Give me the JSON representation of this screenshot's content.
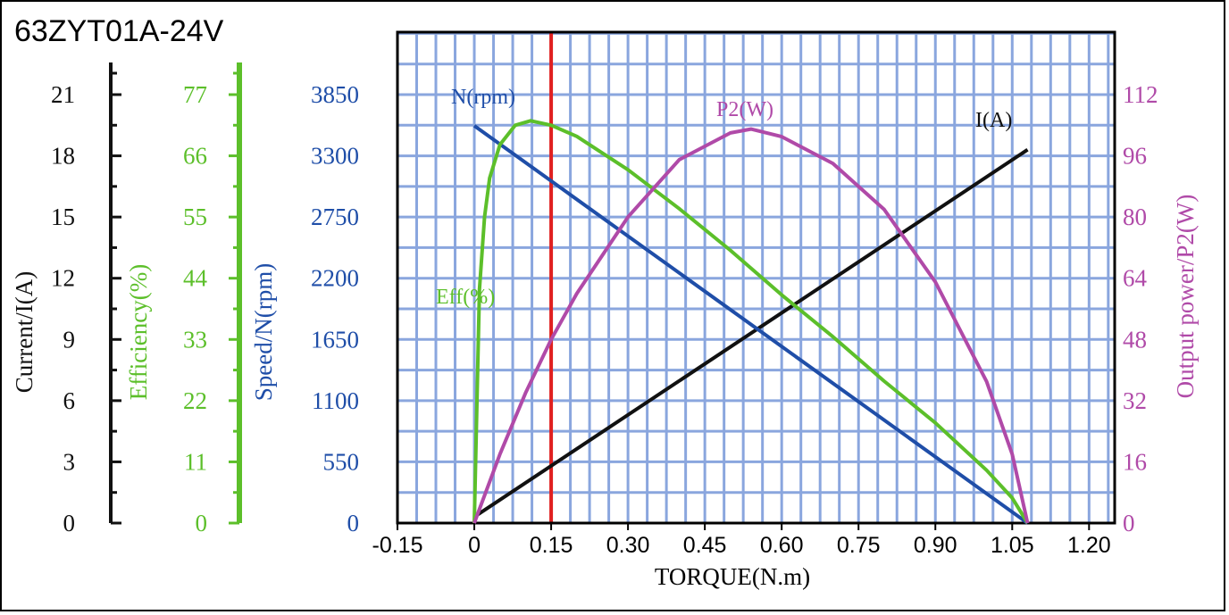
{
  "chart_data": {
    "type": "line",
    "title": "63ZYT01A-24V",
    "xlabel": "TORQUE(N.m)",
    "x_ticks": [
      "-0.15",
      "0",
      "0.15",
      "0.30",
      "0.45",
      "0.60",
      "0.75",
      "0.90",
      "1.05",
      "1.20"
    ],
    "xlim": [
      -0.15,
      1.25
    ],
    "grid": true,
    "colors": {
      "current": "#111111",
      "efficiency": "#5cbf2a",
      "speed": "#1f4ea8",
      "power": "#b04aa8",
      "grid": "#8aa6de",
      "marker": "#e02020"
    },
    "marker_line_x": 0.15,
    "axes": [
      {
        "id": "current",
        "label": "Current/I(A)",
        "ticks": [
          "0",
          "3",
          "6",
          "9",
          "12",
          "15",
          "18",
          "21"
        ],
        "range": [
          0,
          21
        ]
      },
      {
        "id": "efficiency",
        "label": "Efficiency(%)",
        "ticks": [
          "0",
          "11",
          "22",
          "33",
          "44",
          "55",
          "66",
          "77"
        ],
        "range": [
          0,
          77
        ]
      },
      {
        "id": "speed",
        "label": "Speed/N(rpm)",
        "ticks": [
          "0",
          "550",
          "1100",
          "1650",
          "2200",
          "2750",
          "3300",
          "3850"
        ],
        "range": [
          0,
          3850
        ]
      },
      {
        "id": "power",
        "label": "Output power/P2(W)",
        "ticks": [
          "0",
          "16",
          "32",
          "48",
          "64",
          "80",
          "96",
          "112"
        ],
        "range": [
          0,
          112
        ]
      }
    ],
    "series": [
      {
        "name": "I(A)",
        "axis": "current",
        "x": [
          0,
          1.08
        ],
        "y": [
          0.3,
          18.3
        ]
      },
      {
        "name": "N(rpm)",
        "axis": "speed",
        "x": [
          0,
          1.08
        ],
        "y": [
          3570,
          0
        ]
      },
      {
        "name": "Eff(%)",
        "axis": "efficiency",
        "x": [
          0,
          0.01,
          0.02,
          0.03,
          0.05,
          0.08,
          0.11,
          0.15,
          0.2,
          0.3,
          0.4,
          0.5,
          0.6,
          0.7,
          0.8,
          0.9,
          1.0,
          1.05,
          1.08
        ],
        "y": [
          0,
          42,
          55,
          62,
          68,
          71.5,
          72.3,
          71.5,
          69.5,
          63.5,
          56.5,
          49,
          41,
          33.5,
          25.5,
          18,
          9.5,
          4.5,
          0
        ]
      },
      {
        "name": "P2(W)",
        "axis": "power",
        "x": [
          0,
          0.05,
          0.1,
          0.15,
          0.2,
          0.3,
          0.4,
          0.5,
          0.54,
          0.6,
          0.7,
          0.8,
          0.9,
          1.0,
          1.05,
          1.08
        ],
        "y": [
          0,
          18,
          34,
          48,
          60,
          80,
          95,
          102,
          103,
          101,
          94,
          82,
          63,
          37,
          18,
          0
        ]
      }
    ]
  }
}
